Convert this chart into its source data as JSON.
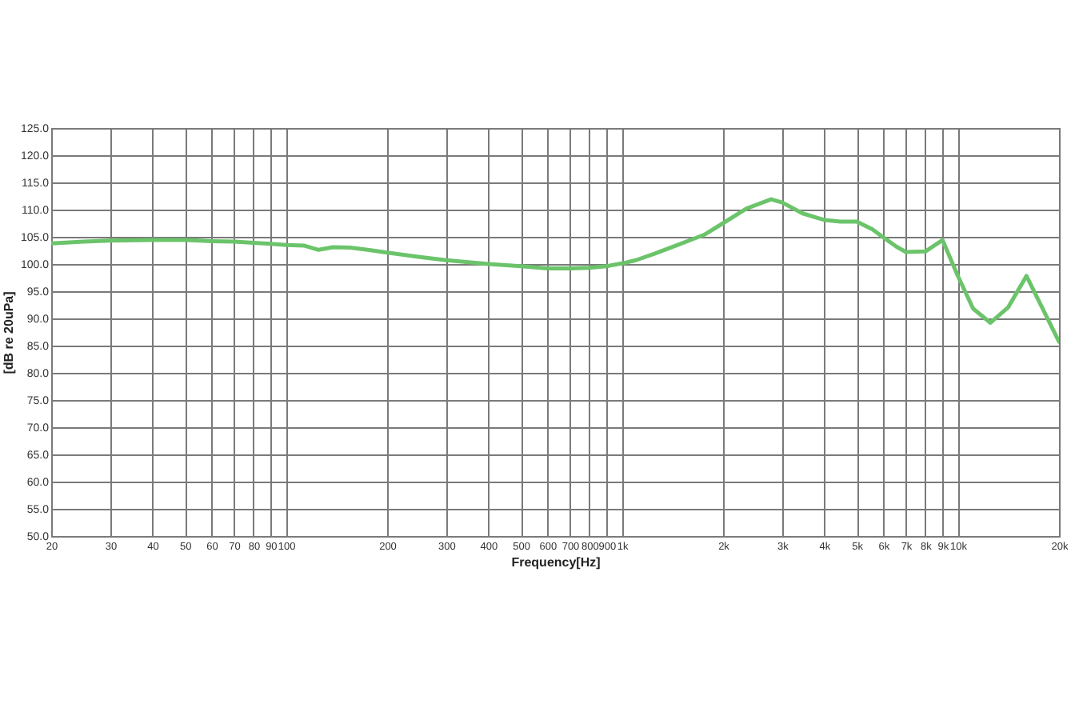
{
  "chart_data": {
    "type": "line",
    "xlabel": "Frequency[Hz]",
    "ylabel": "[dB re 20uPa]",
    "x": [
      20,
      25,
      30,
      40,
      50,
      60,
      70,
      80,
      90,
      100,
      113,
      125,
      138,
      155,
      175,
      200,
      250,
      300,
      400,
      500,
      600,
      700,
      800,
      900,
      1000,
      1100,
      1250,
      1450,
      1630,
      1760,
      2000,
      2350,
      2780,
      3000,
      3450,
      4000,
      4470,
      5000,
      5560,
      6000,
      6560,
      7000,
      8000,
      9000,
      10000,
      11100,
      12500,
      14100,
      16000,
      20000
    ],
    "series": [
      {
        "color": "#6bc46a",
        "values": [
          103.8,
          104.1,
          104.3,
          104.4,
          104.4,
          104.2,
          104.1,
          103.9,
          103.7,
          103.5,
          103.4,
          102.6,
          103.1,
          103.0,
          102.6,
          102.1,
          101.3,
          100.7,
          100.0,
          99.6,
          99.2,
          99.2,
          99.3,
          99.6,
          100.1,
          100.7,
          101.9,
          103.4,
          104.6,
          105.4,
          107.5,
          110.2,
          111.9,
          111.3,
          109.3,
          108.1,
          107.8,
          107.8,
          106.4,
          104.9,
          103.2,
          102.2,
          102.3,
          104.4,
          97.8,
          91.8,
          89.2,
          92.0,
          97.8,
          85.7
        ]
      }
    ],
    "xlim": [
      20,
      20000
    ],
    "ylim": [
      50,
      125
    ],
    "log": "x",
    "grid": true,
    "xticks": [
      20,
      30,
      40,
      50,
      60,
      70,
      80,
      90,
      100,
      200,
      300,
      400,
      500,
      600,
      700,
      800,
      900,
      {
        "value": 1000,
        "label": "1k"
      },
      {
        "value": 2000,
        "label": "2k"
      },
      {
        "value": 3000,
        "label": "3k"
      },
      {
        "value": 4000,
        "label": "4k"
      },
      {
        "value": 5000,
        "label": "5k"
      },
      {
        "value": 6000,
        "label": "6k"
      },
      {
        "value": 7000,
        "label": "7k"
      },
      {
        "value": 8000,
        "label": "8k"
      },
      {
        "value": 9000,
        "label": "9k"
      },
      {
        "value": 10000,
        "label": "10k"
      },
      {
        "value": 20000,
        "label": "20k"
      }
    ],
    "yticks": [
      {
        "value": 50,
        "label": "50.0"
      },
      {
        "value": 55,
        "label": "55.0"
      },
      {
        "value": 60,
        "label": "60.0"
      },
      {
        "value": 65,
        "label": "65.0"
      },
      {
        "value": 70,
        "label": "70.0"
      },
      {
        "value": 75,
        "label": "75.0"
      },
      {
        "value": 80,
        "label": "80.0"
      },
      {
        "value": 85,
        "label": "85.0"
      },
      {
        "value": 90,
        "label": "90.0"
      },
      {
        "value": 95,
        "label": "95.0"
      },
      {
        "value": 100,
        "label": "100.0"
      },
      {
        "value": 105,
        "label": "105.0"
      },
      {
        "value": 110,
        "label": "110.0"
      },
      {
        "value": 115,
        "label": "115.0"
      },
      {
        "value": 120,
        "label": "120.0"
      },
      {
        "value": 125,
        "label": "125.0"
      }
    ]
  }
}
